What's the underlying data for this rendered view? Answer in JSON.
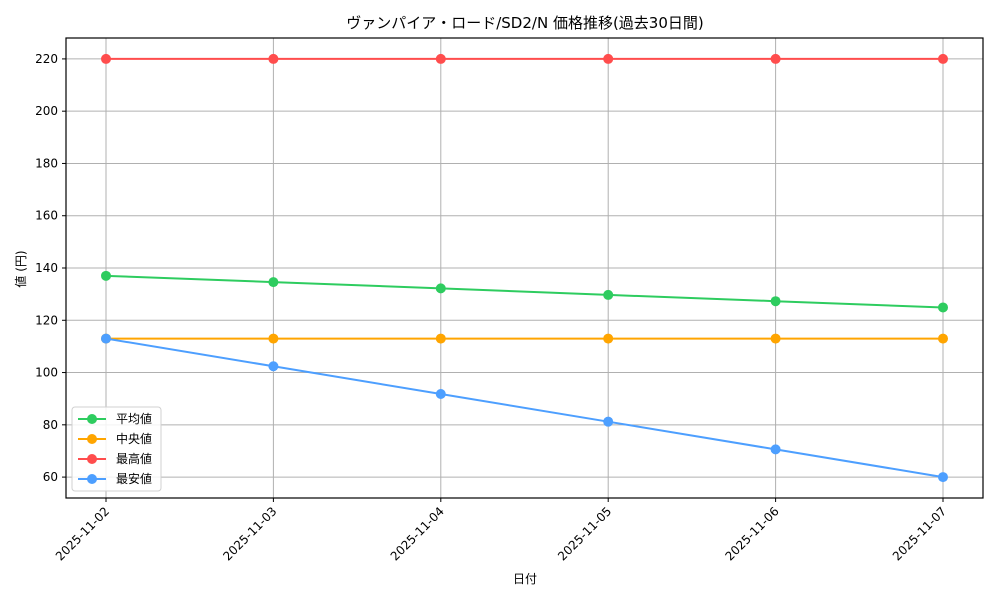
{
  "chart_data": {
    "type": "line",
    "title": "ヴァンパイア・ロード/SD2/N 価格推移(過去30日間)",
    "xlabel": "日付",
    "ylabel": "値 (円)",
    "categories": [
      "2025-11-02",
      "2025-11-03",
      "2025-11-04",
      "2025-11-05",
      "2025-11-06",
      "2025-11-07"
    ],
    "series": [
      {
        "name": "平均値",
        "color": "#2ecc5f",
        "values": [
          137,
          134.6,
          132.2,
          129.7,
          127.3,
          124.9
        ]
      },
      {
        "name": "中央値",
        "color": "#ffa500",
        "values": [
          113,
          113,
          113,
          113,
          113,
          113
        ]
      },
      {
        "name": "最高値",
        "color": "#ff4d4d",
        "values": [
          220,
          220,
          220,
          220,
          220,
          220
        ]
      },
      {
        "name": "最安値",
        "color": "#4d9fff",
        "values": [
          113,
          102.4,
          91.8,
          81.2,
          70.6,
          60
        ]
      }
    ],
    "yticks": [
      60,
      80,
      100,
      120,
      140,
      160,
      180,
      200,
      220
    ],
    "ylim": [
      52,
      228
    ],
    "grid": true,
    "legend_position": "lower left",
    "x_tick_rotation": 45
  }
}
